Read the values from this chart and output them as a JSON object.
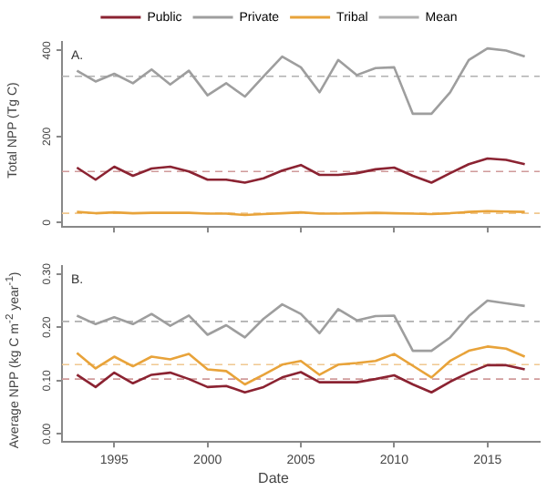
{
  "chart_data": [
    {
      "type": "line",
      "annotations": [
        "A."
      ],
      "ylabel": "Total NPP (Tg C)",
      "legend": "top",
      "tick_labels": "y",
      "line_style": "solid",
      "marker": "none",
      "x": [
        1993,
        1994,
        1995,
        1996,
        1997,
        1998,
        1999,
        2000,
        2001,
        2002,
        2003,
        2004,
        2005,
        2006,
        2007,
        2008,
        2009,
        2010,
        2011,
        2012,
        2013,
        2014,
        2015,
        2016,
        2017
      ],
      "xlim": [
        1992.2,
        2017.8
      ],
      "xticks": [
        {
          "value": 1995,
          "label": null
        },
        {
          "value": 2000,
          "label": null
        },
        {
          "value": 2005,
          "label": null
        },
        {
          "value": 2010,
          "label": null
        },
        {
          "value": 2015,
          "label": null
        }
      ],
      "ylim": [
        -10,
        420
      ],
      "yticks": [
        0,
        200,
        400
      ],
      "series": [
        {
          "name": "Public",
          "color": "#8b2332",
          "values": [
            128,
            100,
            130,
            109,
            126,
            130,
            119,
            100,
            100,
            93,
            103,
            121,
            134,
            111,
            111,
            115,
            124,
            128,
            109,
            93,
            115,
            136,
            149,
            146,
            136
          ]
        },
        {
          "name": "Private",
          "color": "#9e9e9e",
          "values": [
            353,
            328,
            346,
            324,
            356,
            321,
            353,
            296,
            324,
            293,
            340,
            386,
            361,
            303,
            378,
            343,
            359,
            361,
            253,
            253,
            303,
            378,
            405,
            400,
            386
          ]
        },
        {
          "name": "Tribal",
          "color": "#e8a33a",
          "values": [
            25,
            22,
            24,
            22,
            23,
            23,
            23,
            21,
            21,
            18,
            20,
            22,
            24,
            21,
            21,
            22,
            23,
            22,
            21,
            20,
            22,
            25,
            27,
            26,
            25
          ]
        }
      ],
      "ref_lines": [
        {
          "axis": "y",
          "value": 340,
          "label": "Mean",
          "color": "#b0b0b0",
          "line_style": "dashed"
        },
        {
          "axis": "y",
          "value": 119,
          "color": "#d09a9a",
          "line_style": "dashed"
        },
        {
          "axis": "y",
          "value": 22,
          "color": "#f0c890",
          "line_style": "dashed"
        }
      ]
    },
    {
      "type": "line",
      "annotations": [
        "B."
      ],
      "ylabel": "Average NPP (kg C m$^{-2}$ year$^{-1}$)",
      "xlabel": "Date",
      "legend": false,
      "line_style": "solid",
      "marker": "none",
      "x": [
        1993,
        1994,
        1995,
        1996,
        1997,
        1998,
        1999,
        2000,
        2001,
        2002,
        2003,
        2004,
        2005,
        2006,
        2007,
        2008,
        2009,
        2010,
        2011,
        2012,
        2013,
        2014,
        2015,
        2016,
        2017
      ],
      "xlim": [
        1992.2,
        2017.8
      ],
      "xticks": [
        1995,
        2000,
        2005,
        2010,
        2015
      ],
      "ylim": [
        -0.015,
        0.315
      ],
      "yticks": [
        {
          "value": 0,
          "label": "0.00"
        },
        {
          "value": 0.1,
          "label": "0.10"
        },
        {
          "value": 0.2,
          "label": "0.20"
        },
        {
          "value": 0.3,
          "label": "0.30"
        }
      ],
      "series": [
        {
          "color": "#8b2332",
          "values": [
            0.111,
            0.088,
            0.115,
            0.095,
            0.111,
            0.115,
            0.103,
            0.088,
            0.09,
            0.078,
            0.088,
            0.106,
            0.116,
            0.097,
            0.097,
            0.097,
            0.103,
            0.11,
            0.093,
            0.078,
            0.098,
            0.115,
            0.129,
            0.129,
            0.121
          ]
        },
        {
          "color": "#9e9e9e",
          "values": [
            0.222,
            0.206,
            0.219,
            0.206,
            0.225,
            0.203,
            0.222,
            0.186,
            0.204,
            0.181,
            0.216,
            0.243,
            0.225,
            0.189,
            0.234,
            0.213,
            0.221,
            0.222,
            0.156,
            0.156,
            0.181,
            0.221,
            0.25,
            0.245,
            0.24
          ]
        },
        {
          "color": "#e8a33a",
          "values": [
            0.152,
            0.123,
            0.145,
            0.127,
            0.145,
            0.14,
            0.15,
            0.121,
            0.118,
            0.093,
            0.111,
            0.13,
            0.137,
            0.111,
            0.13,
            0.133,
            0.137,
            0.15,
            0.128,
            0.106,
            0.137,
            0.156,
            0.164,
            0.16,
            0.145
          ]
        }
      ],
      "ref_lines": [
        {
          "axis": "y",
          "value": 0.211,
          "color": "#b0b0b0",
          "line_style": "dashed"
        },
        {
          "axis": "y",
          "value": 0.103,
          "color": "#d09a9a",
          "line_style": "dashed"
        },
        {
          "axis": "y",
          "value": 0.13,
          "color": "#f0c890",
          "line_style": "dashed"
        }
      ]
    }
  ]
}
